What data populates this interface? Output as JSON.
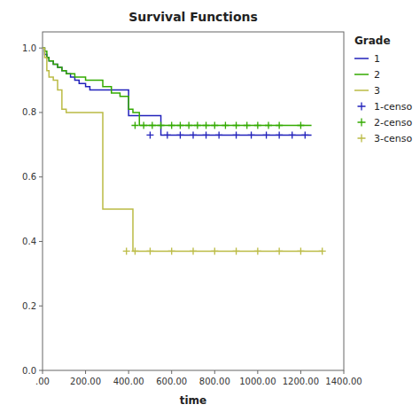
{
  "chart_data": {
    "type": "step",
    "title": "Survival Functions",
    "xlabel": "time",
    "xlim": [
      0,
      1400
    ],
    "ylim": [
      0.0,
      1.05
    ],
    "xticks": [
      {
        "value": 0,
        "label": ".00"
      },
      {
        "value": 200,
        "label": "200.00"
      },
      {
        "value": 400,
        "label": "400.00"
      },
      {
        "value": 600,
        "label": "600.00"
      },
      {
        "value": 800,
        "label": "800.00"
      },
      {
        "value": 1000,
        "label": "1000.00"
      },
      {
        "value": 1200,
        "label": "1200.00"
      },
      {
        "value": 1400,
        "label": "1400.00"
      }
    ],
    "yticks": [
      {
        "value": 0.0,
        "label": "0.0"
      },
      0.2,
      0.4,
      0.6,
      0.8,
      {
        "value": 1.0,
        "label": "1.0"
      }
    ],
    "grid": false,
    "legend": "right",
    "legend_title": "Grade",
    "series": [
      {
        "name": "1",
        "color": "#2222bb",
        "type": "step",
        "x": [
          0,
          10,
          20,
          30,
          50,
          70,
          90,
          110,
          130,
          150,
          170,
          200,
          220,
          250,
          280,
          320,
          360,
          400,
          450,
          500,
          550,
          600,
          650,
          700,
          750,
          800,
          850,
          900,
          950,
          1000,
          1050,
          1100,
          1150,
          1200,
          1250
        ],
        "values": [
          1.0,
          0.98,
          0.97,
          0.96,
          0.95,
          0.94,
          0.93,
          0.92,
          0.91,
          0.9,
          0.89,
          0.88,
          0.87,
          0.87,
          0.87,
          0.87,
          0.87,
          0.79,
          0.79,
          0.79,
          0.73,
          0.73,
          0.73,
          0.73,
          0.73,
          0.73,
          0.73,
          0.73,
          0.73,
          0.73,
          0.73,
          0.73,
          0.73,
          0.73,
          0.73
        ]
      },
      {
        "name": "2",
        "color": "#33aa00",
        "type": "step",
        "x": [
          0,
          10,
          20,
          30,
          50,
          70,
          90,
          110,
          130,
          150,
          200,
          240,
          280,
          320,
          360,
          400,
          420,
          450,
          500,
          550,
          600,
          650,
          700,
          750,
          800,
          850,
          900,
          950,
          1000,
          1050,
          1100,
          1150,
          1200,
          1250
        ],
        "values": [
          1.0,
          0.99,
          0.97,
          0.96,
          0.95,
          0.94,
          0.93,
          0.92,
          0.92,
          0.91,
          0.9,
          0.9,
          0.88,
          0.86,
          0.85,
          0.81,
          0.8,
          0.76,
          0.76,
          0.76,
          0.76,
          0.76,
          0.76,
          0.76,
          0.76,
          0.76,
          0.76,
          0.76,
          0.76,
          0.76,
          0.76,
          0.76,
          0.76,
          0.76
        ]
      },
      {
        "name": "3",
        "color": "#bbbb44",
        "type": "step",
        "x": [
          0,
          10,
          20,
          30,
          50,
          70,
          90,
          110,
          130,
          150,
          180,
          210,
          240,
          280,
          320,
          380,
          420,
          500,
          550,
          600,
          700,
          800,
          900,
          1000,
          1100,
          1200,
          1300
        ],
        "values": [
          1.0,
          0.97,
          0.93,
          0.91,
          0.9,
          0.87,
          0.81,
          0.8,
          0.8,
          0.8,
          0.8,
          0.8,
          0.8,
          0.5,
          0.5,
          0.5,
          0.37,
          0.37,
          0.37,
          0.37,
          0.37,
          0.37,
          0.37,
          0.37,
          0.37,
          0.37,
          0.37
        ]
      },
      {
        "name": "1-censo",
        "color": "#2222bb",
        "type": "scatter",
        "marker": "plus",
        "x": [
          500,
          580,
          640,
          700,
          760,
          820,
          900,
          970,
          1040,
          1100,
          1160,
          1220
        ],
        "values": [
          0.73,
          0.73,
          0.73,
          0.73,
          0.73,
          0.73,
          0.73,
          0.73,
          0.73,
          0.73,
          0.73,
          0.73
        ]
      },
      {
        "name": "2-censo",
        "color": "#33aa00",
        "type": "scatter",
        "marker": "plus",
        "x": [
          430,
          470,
          510,
          550,
          600,
          640,
          680,
          720,
          760,
          800,
          850,
          900,
          950,
          1000,
          1050,
          1100,
          1200
        ],
        "values": [
          0.76,
          0.76,
          0.76,
          0.76,
          0.76,
          0.76,
          0.76,
          0.76,
          0.76,
          0.76,
          0.76,
          0.76,
          0.76,
          0.76,
          0.76,
          0.76,
          0.76
        ]
      },
      {
        "name": "3-censo",
        "color": "#bbbb44",
        "type": "scatter",
        "marker": "plus",
        "x": [
          390,
          430,
          500,
          600,
          700,
          800,
          900,
          1000,
          1100,
          1200,
          1300
        ],
        "values": [
          0.37,
          0.37,
          0.37,
          0.37,
          0.37,
          0.37,
          0.37,
          0.37,
          0.37,
          0.37,
          0.37
        ]
      }
    ]
  }
}
